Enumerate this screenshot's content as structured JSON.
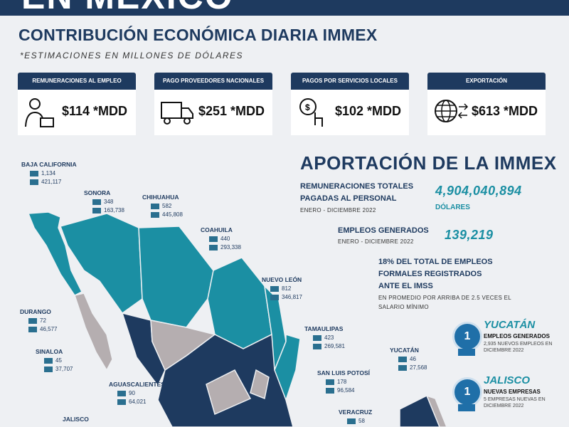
{
  "header": {
    "banner": "EN MÉXICO",
    "title": "CONTRIBUCIÓN ECONÓMICA DIARIA IMMEX",
    "subtitle": "*ESTIMACIONES EN MILLONES DE DÓLARES"
  },
  "cards": [
    {
      "label": "REMUNERACIONES AL EMPLEO",
      "value": "$114 *MDD"
    },
    {
      "label": "PAGO PROVEEDORES NACIONALES",
      "value": "$251 *MDD"
    },
    {
      "label": "PAGOS POR SERVICIOS LOCALES",
      "value": "$102 *MDD"
    },
    {
      "label": "EXPORTACIÓN",
      "value": "$613 *MDD"
    }
  ],
  "aportacion": {
    "title": "APORTACIÓN DE LA IMMEX",
    "remuneraciones": {
      "label": "REMUNERACIONES TOTALES PAGADAS AL PERSONAL",
      "period": "ENERO - DICIEMBRE  2022",
      "value": "4,904,040,894",
      "unit": "DÓLARES"
    },
    "empleos": {
      "label": "EMPLEOS GENERADOS",
      "period": "ENERO - DICIEMBRE  2022",
      "value": "139,219"
    },
    "imss": {
      "label": "18% DEL TOTAL DE EMPLEOS FORMALES REGISTRADOS ANTE EL IMSS",
      "note": "EN PROMEDIO POR ARRIBA DE 2.5 VECES EL SALARIO MÍNIMO"
    }
  },
  "badges": [
    {
      "rank": "1",
      "state": "YUCATÁN",
      "label": "EMPLEOS GENERADOS",
      "note": "2,935 NUEVOS EMPLEOS EN DICIEMBRE 2022"
    },
    {
      "rank": "1",
      "state": "JALISCO",
      "label": "NUEVAS EMPRESAS",
      "note": "5 EMPRESAS NUEVAS EN DICIEMBRE 2022"
    }
  ],
  "states": [
    {
      "name": "BAJA CALIFORNIA",
      "companies": "1,134",
      "employees": "421,117"
    },
    {
      "name": "SONORA",
      "companies": "348",
      "employees": "163,738"
    },
    {
      "name": "CHIHUAHUA",
      "companies": "582",
      "employees": "445,808"
    },
    {
      "name": "COAHUILA",
      "companies": "440",
      "employees": "293,338"
    },
    {
      "name": "NUEVO LEÓN",
      "companies": "812",
      "employees": "346,817"
    },
    {
      "name": "DURANGO",
      "companies": "72",
      "employees": "46,577"
    },
    {
      "name": "SINALOA",
      "companies": "45",
      "employees": "37,707"
    },
    {
      "name": "AGUASCALIENTES",
      "companies": "90",
      "employees": "64,021"
    },
    {
      "name": "TAMAULIPAS",
      "companies": "423",
      "employees": "269,581"
    },
    {
      "name": "SAN LUIS POTOSÍ",
      "companies": "178",
      "employees": "96,584"
    },
    {
      "name": "YUCATÁN",
      "companies": "46",
      "employees": "27,568"
    },
    {
      "name": "VERACRUZ",
      "companies": "58"
    },
    {
      "name": "JALISCO"
    }
  ]
}
